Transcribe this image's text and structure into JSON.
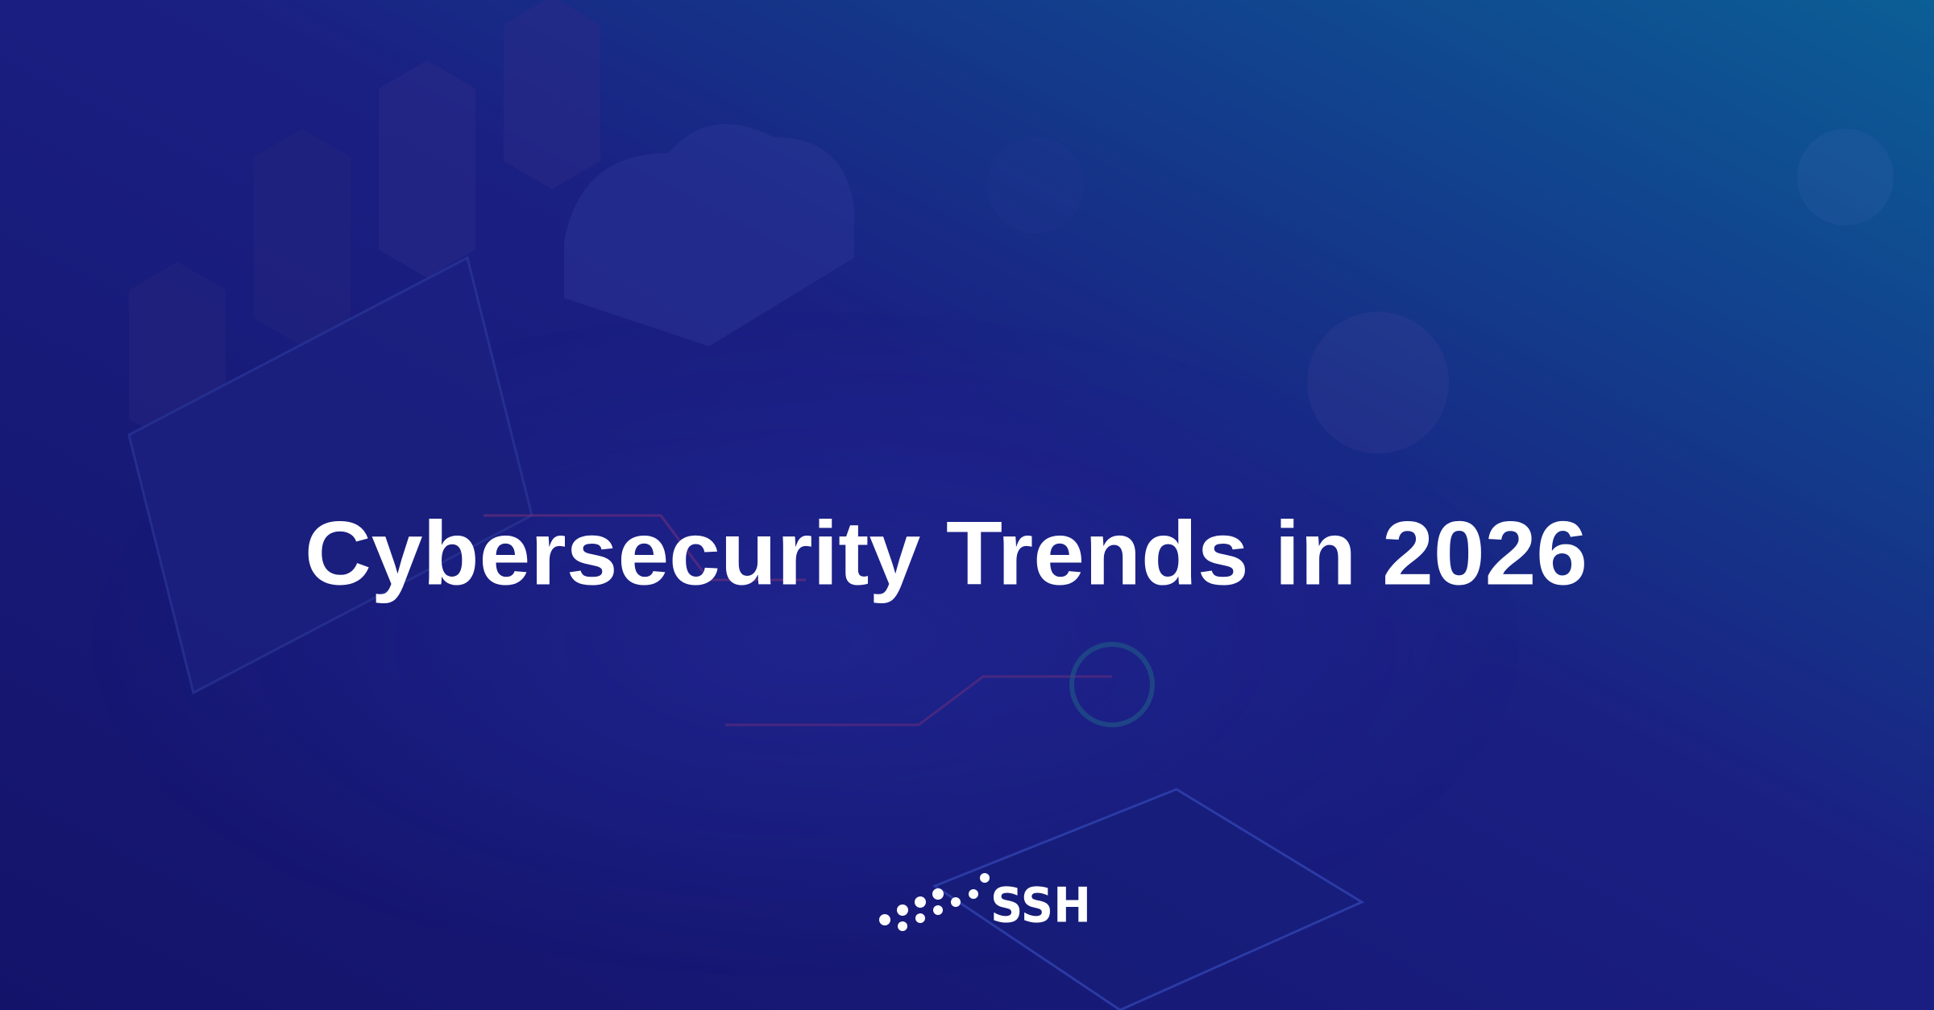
{
  "banner": {
    "title": "Cybersecurity Trends in 2026",
    "logo": "SSH"
  }
}
